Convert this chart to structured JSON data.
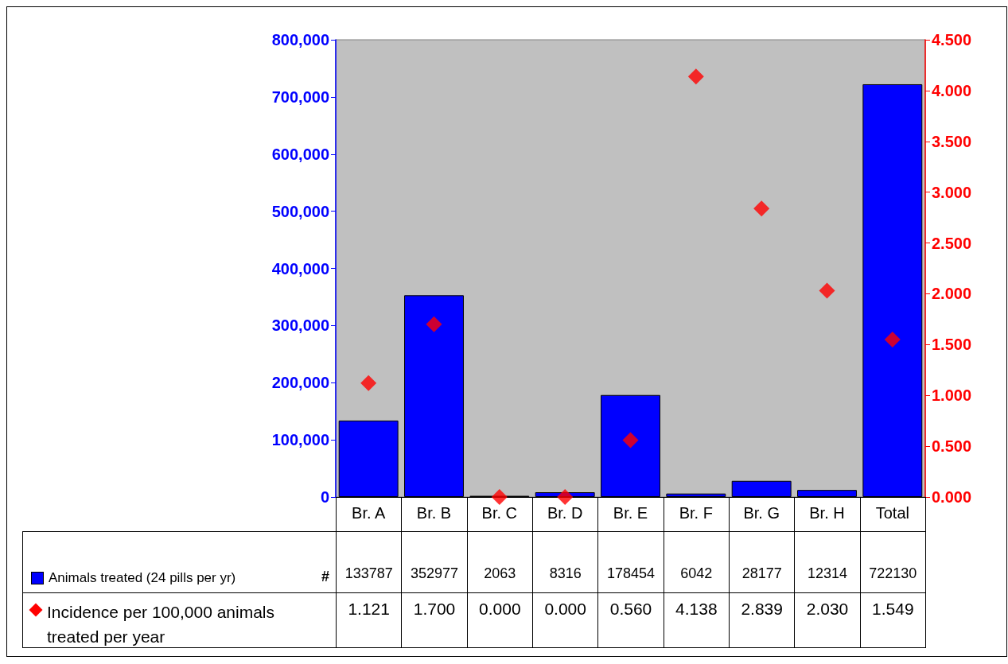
{
  "chart_data": {
    "type": "bar",
    "categories": [
      "Br. A",
      "Br. B",
      "Br. C",
      "Br. D",
      "Br. E",
      "Br. F",
      "Br. G",
      "Br. H",
      "Total"
    ],
    "series": [
      {
        "name": "Animals treated  (24 pills per yr)",
        "color": "#0000ff",
        "values": [
          133787,
          352977,
          2063,
          8316,
          178454,
          6042,
          28177,
          12314,
          722130
        ],
        "value_labels": [
          "133787",
          "352977",
          "2063",
          "8316",
          "178454",
          "6042",
          "28177",
          "12314",
          "722130"
        ]
      },
      {
        "name": "Incidence per 100,000 animals treated per year",
        "type": "scatter",
        "axis": "y2",
        "color": "#ff0000",
        "marker": "diamond",
        "values": [
          1.121,
          1.7,
          0,
          0,
          0.56,
          4.138,
          2.839,
          2.03,
          1.549
        ],
        "value_labels": [
          "1.121",
          "1.700",
          "0.000",
          "0.000",
          "0.560",
          "4.138",
          "2.839",
          "2.030",
          "1.549"
        ]
      }
    ],
    "ylim": [
      0,
      800000
    ],
    "yticks": [
      0,
      {
        "value": 100000,
        "label": "100,000"
      },
      {
        "value": 200000,
        "label": "200,000"
      },
      {
        "value": 300000,
        "label": "300,000"
      },
      {
        "value": 400000,
        "label": "400,000"
      },
      {
        "value": 500000,
        "label": "500,000"
      },
      {
        "value": 600000,
        "label": "600,000"
      },
      {
        "value": 700000,
        "label": "700,000"
      },
      {
        "value": 800000,
        "label": "800,000"
      }
    ],
    "y2lim": [
      0,
      4.5
    ],
    "y2ticks": [
      {
        "value": 0,
        "label": "0.000"
      },
      {
        "value": 0.5,
        "label": "0.500"
      },
      {
        "value": 1,
        "label": "1.000"
      },
      {
        "value": 1.5,
        "label": "1.500"
      },
      {
        "value": 2,
        "label": "2.000"
      },
      {
        "value": 2.5,
        "label": "2.500"
      },
      {
        "value": 3,
        "label": "3.000"
      },
      {
        "value": 3.5,
        "label": "3.500"
      },
      {
        "value": 4,
        "label": "4.000"
      },
      {
        "value": 4.5,
        "label": "4.500"
      }
    ],
    "annotations": [
      "#"
    ],
    "legend": "bottom",
    "grid": false
  }
}
